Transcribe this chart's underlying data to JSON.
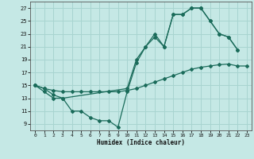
{
  "xlabel": "Humidex (Indice chaleur)",
  "bg_color": "#c5e8e5",
  "grid_color": "#a8d4d0",
  "line_color": "#1a6b5a",
  "xlim": [
    -0.5,
    23.5
  ],
  "ylim": [
    8.0,
    28.0
  ],
  "xticks": [
    0,
    1,
    2,
    3,
    4,
    5,
    6,
    7,
    8,
    9,
    10,
    11,
    12,
    13,
    14,
    15,
    16,
    17,
    18,
    19,
    20,
    21,
    22,
    23
  ],
  "yticks": [
    9,
    11,
    13,
    15,
    17,
    19,
    21,
    23,
    25,
    27
  ],
  "line1_x": [
    0,
    1,
    2,
    3,
    4,
    5,
    6,
    7,
    8,
    9,
    10,
    11,
    12,
    13,
    14,
    15,
    16,
    17,
    18,
    19,
    20,
    21,
    22
  ],
  "line1_y": [
    15,
    14,
    13,
    13,
    11,
    11,
    10,
    9.5,
    9.5,
    8.5,
    14,
    18.5,
    21,
    22.5,
    21,
    26,
    26,
    27,
    27,
    25,
    23,
    22.5,
    20.5
  ],
  "line2_x": [
    0,
    1,
    2,
    3,
    4,
    5,
    6,
    7,
    8,
    9,
    10,
    11,
    12,
    13,
    14,
    15,
    16,
    17,
    18,
    19,
    20,
    21,
    22,
    23
  ],
  "line2_y": [
    15,
    14.5,
    14.2,
    14.0,
    14.0,
    14.0,
    14.0,
    14.0,
    14.0,
    14.0,
    14.2,
    14.5,
    15.0,
    15.5,
    16.0,
    16.5,
    17.0,
    17.5,
    17.8,
    18.0,
    18.2,
    18.3,
    18.0,
    18.0
  ],
  "line3_x": [
    0,
    1,
    2,
    3,
    10,
    11,
    12,
    13,
    14,
    15,
    16,
    17,
    18,
    19,
    20,
    21,
    22
  ],
  "line3_y": [
    15,
    14.5,
    13.5,
    13,
    14.5,
    19,
    21,
    23,
    21,
    26,
    26,
    27,
    27,
    25,
    23,
    22.5,
    20.5
  ]
}
